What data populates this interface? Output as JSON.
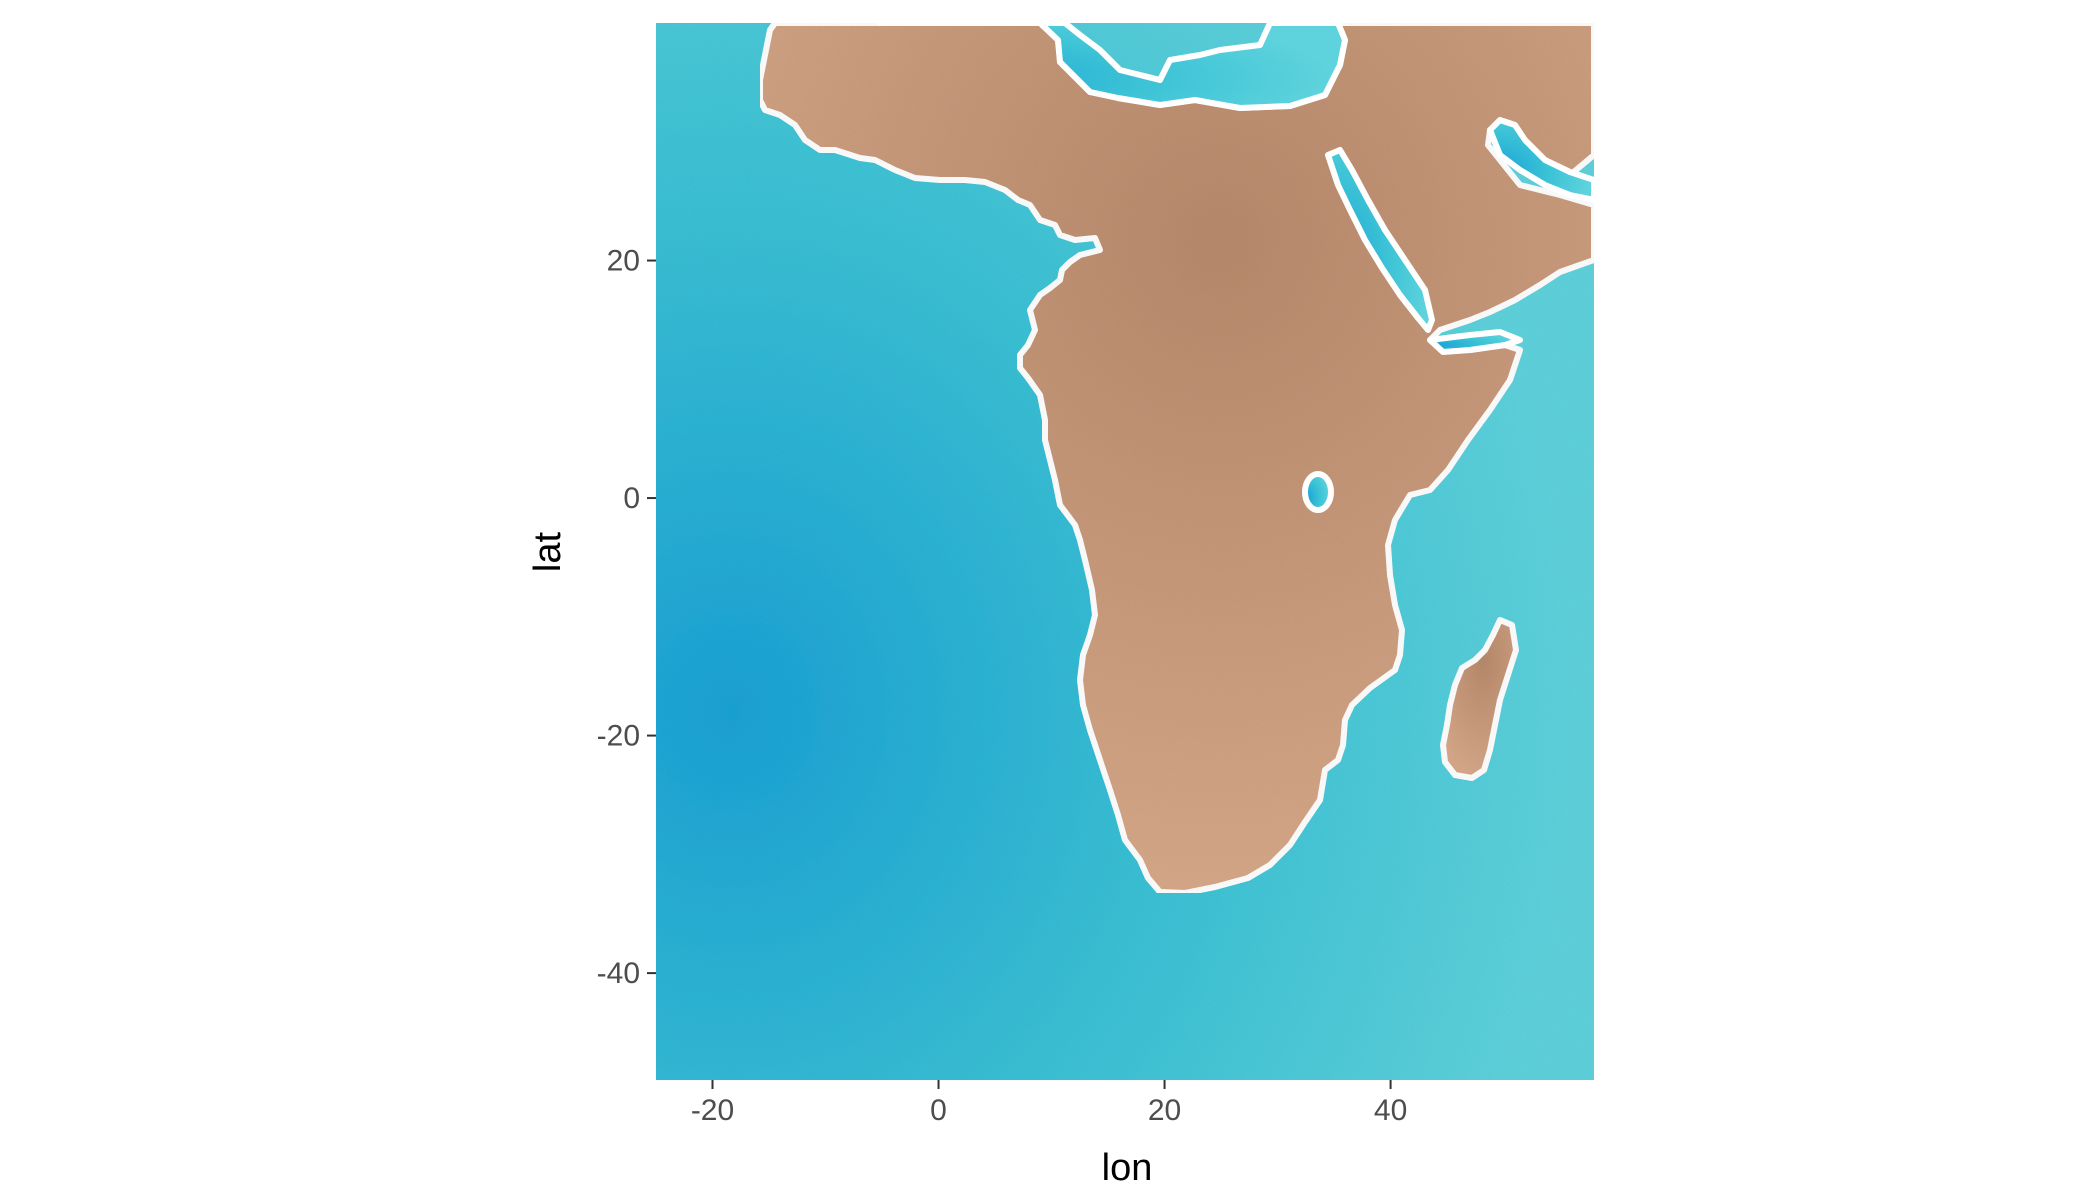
{
  "map": {
    "x_axis": {
      "title": "lon",
      "range": [
        -25,
        58
      ],
      "ticks": [
        {
          "value": -20,
          "label": "-20"
        },
        {
          "value": 0,
          "label": "0"
        },
        {
          "value": 20,
          "label": "20"
        },
        {
          "value": 40,
          "label": "40"
        }
      ]
    },
    "y_axis": {
      "title": "lat",
      "range": [
        -49,
        40
      ],
      "ticks": [
        {
          "value": 20,
          "label": "20"
        },
        {
          "value": 0,
          "label": "0"
        },
        {
          "value": -20,
          "label": "-20"
        },
        {
          "value": -40,
          "label": "-40"
        }
      ]
    },
    "style": {
      "ocean_color": "#3cc3d6",
      "ocean_deep_color": "#1aa3d6",
      "land_color": "#d8a98a",
      "land_dark_color": "#b98a6c",
      "coast_color": "#ffffff"
    },
    "features": [
      "Africa",
      "Madagascar",
      "Arabian Peninsula",
      "Europe",
      "Mediterranean Sea",
      "Red Sea",
      "Persian Gulf",
      "Lake Victoria"
    ]
  }
}
